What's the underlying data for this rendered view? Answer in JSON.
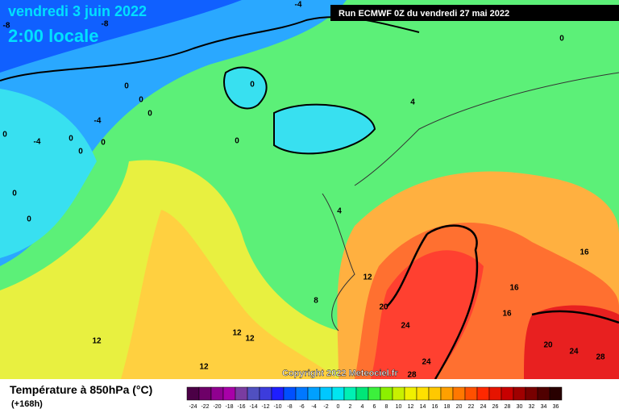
{
  "header": {
    "date": "vendredi 3 juin 2022",
    "time": "2:00 locale",
    "run": "Run ECMWF 0Z du vendredi 27 mai 2022"
  },
  "copyright": "Copyright 2022 Meteociel.fr",
  "map": {
    "labels": [
      -4,
      -8,
      -8,
      0,
      0,
      0,
      0,
      -4,
      -4,
      0,
      0,
      0,
      0,
      0,
      0,
      4,
      0,
      0,
      4,
      12,
      8,
      20,
      24,
      16,
      16,
      16,
      12,
      12,
      12,
      12,
      24,
      20,
      24,
      28,
      28
    ]
  },
  "legend": {
    "title": "Température à 850hPa (°C)",
    "subtitle": "(+168h)",
    "scale": [
      -24,
      -22,
      -20,
      -18,
      -16,
      -14,
      -12,
      -10,
      -8,
      -6,
      -4,
      -2,
      0,
      2,
      4,
      6,
      8,
      10,
      12,
      14,
      16,
      18,
      20,
      22,
      24,
      26,
      28,
      30,
      32,
      34,
      36
    ],
    "colors": [
      "#4b0046",
      "#6e0068",
      "#900090",
      "#a800a8",
      "#7a3ca0",
      "#5050c0",
      "#3c3cdc",
      "#1e1eff",
      "#0050ff",
      "#0078ff",
      "#00a0ff",
      "#00c8ff",
      "#00e6f0",
      "#00f0b4",
      "#00e678",
      "#3cf03c",
      "#8cf000",
      "#c8f000",
      "#f0f000",
      "#ffe000",
      "#ffc800",
      "#ffa000",
      "#ff7800",
      "#ff5000",
      "#ff2800",
      "#e61400",
      "#c80000",
      "#a00000",
      "#780000",
      "#500000",
      "#280000"
    ]
  }
}
